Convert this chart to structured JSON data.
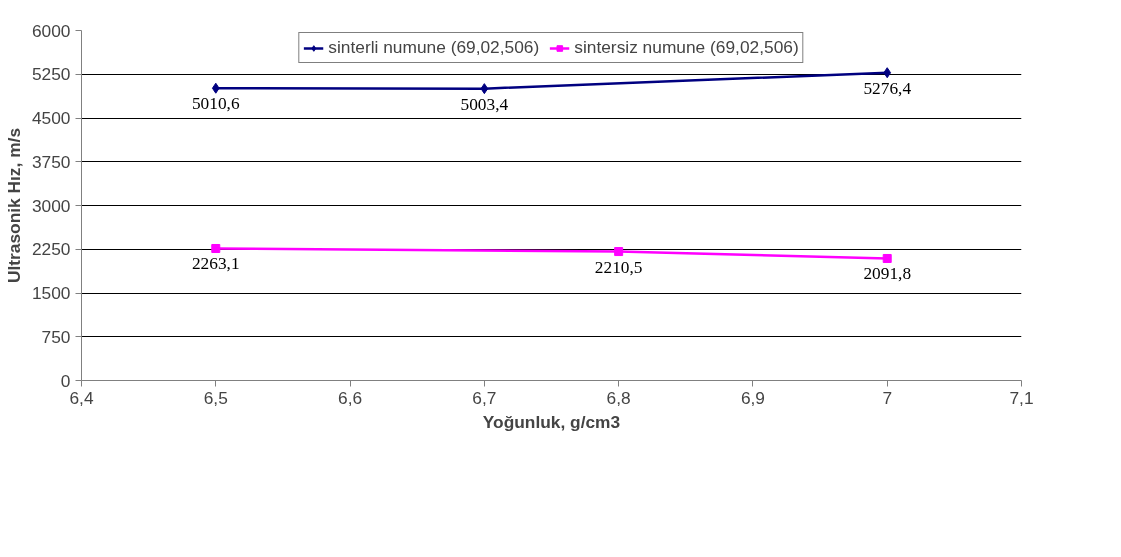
{
  "chart_data": {
    "type": "line",
    "xlabel": "Yoğunluk, g/cm3",
    "ylabel": "Ultrasonik Hız, m/s",
    "xlim": [
      6.4,
      7.1
    ],
    "xticks": [
      {
        "value": 6.4,
        "label": "6,4"
      },
      {
        "value": 6.5,
        "label": "6,5"
      },
      {
        "value": 6.6,
        "label": "6,6"
      },
      {
        "value": 6.7,
        "label": "6,7"
      },
      {
        "value": 6.8,
        "label": "6,8"
      },
      {
        "value": 6.9,
        "label": "6,9"
      },
      7,
      {
        "value": 7.1,
        "label": "7,1"
      }
    ],
    "ylim": [
      0,
      6000
    ],
    "yticks": [
      0,
      750,
      1500,
      2250,
      3000,
      3750,
      4500,
      5250,
      6000
    ],
    "grid": "y",
    "legend": "top",
    "series": [
      {
        "name": "sinterli numune (69,02,506)",
        "color": "#000080",
        "marker": "diamond",
        "x": [
          6.5,
          6.7,
          7
        ],
        "values": [
          5010.6,
          5003.4,
          5276.4
        ],
        "value_labels": [
          "5010,6",
          "5003,4",
          "5276,4"
        ]
      },
      {
        "name": "sintersiz numune (69,02,506)",
        "color": "#ff00ff",
        "marker": "square",
        "x": [
          6.5,
          6.8,
          7
        ],
        "values": [
          2263.1,
          2210.5,
          2091.8
        ],
        "value_labels": [
          "2263,1",
          "2210,5",
          "2091,8"
        ]
      }
    ]
  }
}
